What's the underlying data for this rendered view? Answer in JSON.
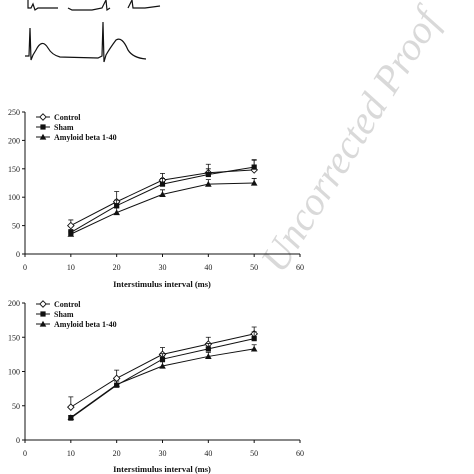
{
  "watermark": "Uncorrected Proof",
  "ecg_traces": {
    "description_icon": "ecg-waveform-icon"
  },
  "chart_data": [
    {
      "type": "line",
      "title": "",
      "xlabel": "Interstimulus interval (ms)",
      "ylabel": "",
      "xlim": [
        0,
        60
      ],
      "ylim": [
        0,
        250
      ],
      "xticks": [
        0,
        10,
        20,
        30,
        40,
        50,
        60
      ],
      "yticks": [
        0,
        50,
        100,
        150,
        200,
        250
      ],
      "grid": false,
      "legend_position": "top-left",
      "x": [
        10,
        20,
        30,
        40,
        50
      ],
      "series": [
        {
          "name": "Control",
          "marker": "open-diamond",
          "values": [
            50,
            92,
            130,
            143,
            148
          ],
          "errors": [
            10,
            18,
            12,
            15,
            18
          ]
        },
        {
          "name": "Sham",
          "marker": "filled-square",
          "values": [
            38,
            85,
            123,
            140,
            153
          ],
          "errors": [
            5,
            10,
            10,
            10,
            12
          ]
        },
        {
          "name": "Amyloid beta 1-40",
          "marker": "filled-triangle",
          "values": [
            35,
            73,
            105,
            123,
            125
          ],
          "errors": [
            4,
            8,
            8,
            8,
            8
          ]
        }
      ]
    },
    {
      "type": "line",
      "title": "",
      "xlabel": "Interstimulus interval (ms)",
      "ylabel": "",
      "xlim": [
        0,
        60
      ],
      "ylim": [
        0,
        200
      ],
      "xticks": [
        0,
        10,
        20,
        30,
        40,
        50,
        60
      ],
      "yticks": [
        0,
        50,
        100,
        150,
        200
      ],
      "grid": false,
      "legend_position": "top-left",
      "x": [
        10,
        20,
        30,
        40,
        50
      ],
      "series": [
        {
          "name": "Control",
          "marker": "open-diamond",
          "values": [
            48,
            90,
            125,
            140,
            155
          ],
          "errors": [
            15,
            12,
            10,
            10,
            10
          ]
        },
        {
          "name": "Sham",
          "marker": "filled-square",
          "values": [
            32,
            80,
            118,
            133,
            148
          ],
          "errors": [
            4,
            6,
            8,
            8,
            10
          ]
        },
        {
          "name": "Amyloid beta 1-40",
          "marker": "filled-triangle",
          "values": [
            33,
            81,
            108,
            122,
            133
          ],
          "errors": [
            3,
            5,
            6,
            6,
            6
          ]
        }
      ]
    }
  ]
}
